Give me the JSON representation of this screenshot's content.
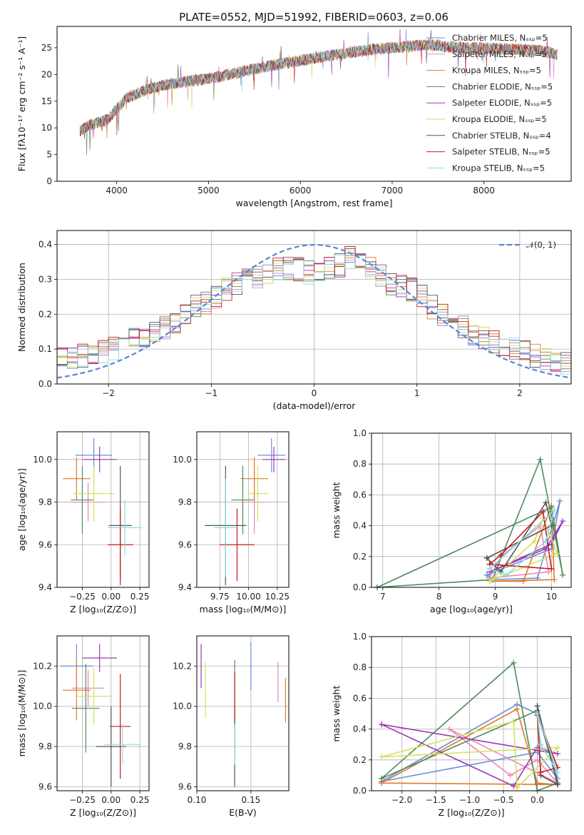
{
  "figure_title": "PLATE=0552, MJD=51992, FIBERID=0603, z=0.06",
  "chart_data": [
    {
      "id": "spectrum",
      "type": "line",
      "xlabel": "wavelength [Angstrom, rest frame]",
      "ylabel": "Flux [fλ10⁻¹⁷ erg cm⁻² s⁻¹ A⁻¹]",
      "xlim": [
        3350,
        8950
      ],
      "ylim": [
        0,
        29
      ],
      "xticks": [
        4000,
        5000,
        6000,
        7000,
        8000
      ],
      "yticks": [
        0,
        5,
        10,
        15,
        20,
        25
      ],
      "grid": false,
      "legend_position": "right",
      "spectrum_anchor_points": {
        "x": [
          3600,
          3700,
          3800,
          3900,
          4000,
          4100,
          4300,
          4500,
          4800,
          5000,
          5300,
          5600,
          5900,
          6200,
          6500,
          6800,
          7000,
          7200,
          7400,
          7600,
          7800,
          8000,
          8300,
          8600,
          8800
        ],
        "y": [
          9.5,
          10.5,
          11,
          11.5,
          13.5,
          15.5,
          17,
          18,
          18.8,
          19.2,
          20.3,
          21.4,
          22.3,
          23.2,
          24,
          24.7,
          25,
          25.3,
          25.6,
          25.2,
          25,
          24.9,
          24.7,
          24.5,
          23.8
        ]
      },
      "series": [
        {
          "name": "Chabrier MILES, N$_{SSP}$=5",
          "color": "#6a8fd8"
        },
        {
          "name": "Salpeter MILES, N$_{SSP}$=5",
          "color": "#e887b8"
        },
        {
          "name": "Kroupa MILES, N$_{SSP}$=5",
          "color": "#e07a2a"
        },
        {
          "name": "Chabrier ELODIE, N$_{SSP}$=5",
          "color": "#4f8a5c"
        },
        {
          "name": "Salpeter ELODIE, N$_{SSP}$=5",
          "color": "#9a3ab5"
        },
        {
          "name": "Kroupa ELODIE, N$_{SSP}$=5",
          "color": "#cfe35a"
        },
        {
          "name": "Chabrier STELIB, N$_{SSP}$=4",
          "color": "#555555"
        },
        {
          "name": "Salpeter STELIB, N$_{SSP}$=5",
          "color": "#c41e1e"
        },
        {
          "name": "Kroupa STELIB, N$_{SSP}$=5",
          "color": "#8fdbe3"
        }
      ]
    },
    {
      "id": "residuals",
      "type": "line",
      "xlabel": "(data-model)/error",
      "ylabel": "Normed distribution",
      "xlim": [
        -2.5,
        2.5
      ],
      "ylim": [
        0,
        0.44
      ],
      "xticks": [
        -2,
        -1,
        0,
        1,
        2
      ],
      "yticks": [
        0.0,
        0.1,
        0.2,
        0.3,
        0.4
      ],
      "grid": true,
      "legend_position": "top-right",
      "reference_curve": {
        "name": "𝒩(0, 1)",
        "color": "#5b84d6"
      },
      "hist_bins": [
        -2.5,
        -2.4,
        -2.3,
        -2.2,
        -2.1,
        -2.0,
        -1.9,
        -1.8,
        -1.7,
        -1.6,
        -1.5,
        -1.4,
        -1.3,
        -1.2,
        -1.1,
        -1.0,
        -0.9,
        -0.8,
        -0.7,
        -0.6,
        -0.5,
        -0.4,
        -0.3,
        -0.2,
        -0.1,
        0.0,
        0.1,
        0.2,
        0.3,
        0.4,
        0.5,
        0.6,
        0.7,
        0.8,
        0.9,
        1.0,
        1.1,
        1.2,
        1.3,
        1.4,
        1.5,
        1.6,
        1.7,
        1.8,
        1.9,
        2.0,
        2.1,
        2.2,
        2.3,
        2.4,
        2.5
      ],
      "base_density": [
        0.07,
        0.07,
        0.08,
        0.09,
        0.09,
        0.1,
        0.11,
        0.13,
        0.14,
        0.15,
        0.16,
        0.18,
        0.2,
        0.22,
        0.23,
        0.25,
        0.27,
        0.29,
        0.3,
        0.31,
        0.32,
        0.33,
        0.33,
        0.33,
        0.32,
        0.32,
        0.33,
        0.34,
        0.36,
        0.35,
        0.33,
        0.31,
        0.29,
        0.28,
        0.27,
        0.25,
        0.22,
        0.2,
        0.18,
        0.16,
        0.14,
        0.13,
        0.12,
        0.11,
        0.1,
        0.09,
        0.08,
        0.07,
        0.07,
        0.06
      ]
    },
    {
      "id": "age_vs_Z",
      "type": "scatter",
      "xlabel": "Z [log₁₀(Z/Z⊙)]",
      "ylabel": "age  [log₁₀(age/yr)]",
      "xlim": [
        -0.47,
        0.33
      ],
      "ylim": [
        9.4,
        10.13
      ],
      "xticks": [
        -0.25,
        0.0,
        0.25
      ],
      "yticks": [
        9.4,
        9.6,
        9.8,
        10.0
      ],
      "grid": true,
      "points": [
        {
          "x": -0.15,
          "y": 10.02,
          "ex": 0.16,
          "ey": 0.08,
          "color": "#6a8fd8"
        },
        {
          "x": -0.2,
          "y": 9.8,
          "ex": 0.16,
          "ey": 0.09,
          "color": "#e887b8"
        },
        {
          "x": -0.3,
          "y": 9.91,
          "ex": 0.12,
          "ey": 0.1,
          "color": "#e07a2a"
        },
        {
          "x": -0.25,
          "y": 9.81,
          "ex": 0.1,
          "ey": 0.16,
          "color": "#4f8a5c"
        },
        {
          "x": -0.1,
          "y": 10.0,
          "ex": 0.15,
          "ey": 0.06,
          "color": "#9a3ab5"
        },
        {
          "x": -0.15,
          "y": 9.84,
          "ex": 0.18,
          "ey": 0.13,
          "color": "#cfe35a"
        },
        {
          "x": 0.08,
          "y": 9.69,
          "ex": 0.1,
          "ey": 0.28,
          "color": "#555555"
        },
        {
          "x": 0.08,
          "y": 9.6,
          "ex": 0.11,
          "ey": 0.17,
          "color": "#c41e1e"
        },
        {
          "x": 0.12,
          "y": 9.68,
          "ex": 0.15,
          "ey": 0.13,
          "color": "#8fdbe3"
        }
      ]
    },
    {
      "id": "age_vs_mass",
      "type": "scatter",
      "xlabel": "mass [log₁₀(M/M⊙)]",
      "ylabel": "",
      "xlim": [
        9.55,
        10.35
      ],
      "ylim": [
        9.4,
        10.13
      ],
      "xticks": [
        9.75,
        10.0,
        10.25
      ],
      "yticks": [
        9.4,
        9.6,
        9.8,
        10.0
      ],
      "grid": true,
      "points": [
        {
          "x": 10.2,
          "y": 10.02,
          "ex": 0.12,
          "ey": 0.08,
          "color": "#6a8fd8"
        },
        {
          "x": 10.05,
          "y": 9.8,
          "ex": 0.1,
          "ey": 0.15,
          "color": "#e887b8"
        },
        {
          "x": 10.05,
          "y": 9.91,
          "ex": 0.12,
          "ey": 0.1,
          "color": "#e07a2a"
        },
        {
          "x": 9.95,
          "y": 9.81,
          "ex": 0.1,
          "ey": 0.16,
          "color": "#4f8a5c"
        },
        {
          "x": 10.22,
          "y": 10.0,
          "ex": 0.1,
          "ey": 0.06,
          "color": "#9a3ab5"
        },
        {
          "x": 10.08,
          "y": 9.84,
          "ex": 0.09,
          "ey": 0.13,
          "color": "#cfe35a"
        },
        {
          "x": 9.8,
          "y": 9.69,
          "ex": 0.18,
          "ey": 0.28,
          "color": "#555555"
        },
        {
          "x": 9.9,
          "y": 9.6,
          "ex": 0.15,
          "ey": 0.17,
          "color": "#c41e1e"
        },
        {
          "x": 9.8,
          "y": 9.68,
          "ex": 0.1,
          "ey": 0.23,
          "color": "#8fdbe3"
        }
      ]
    },
    {
      "id": "weight_vs_age",
      "type": "line",
      "xlabel": "age  [log₁₀(age/yr)]",
      "ylabel": "mass weight",
      "xlim": [
        6.8,
        10.35
      ],
      "ylim": [
        0,
        1.0
      ],
      "xticks": [
        7,
        8,
        9,
        10
      ],
      "yticks": [
        0.0,
        0.2,
        0.4,
        0.6,
        0.8,
        1.0
      ],
      "grid": true,
      "series": [
        {
          "color": "#6a8fd8",
          "x": [
            8.85,
            8.95,
            9.75,
            10.15,
            10.0,
            8.85
          ],
          "y": [
            0.08,
            0.05,
            0.06,
            0.56,
            0.25,
            0.08
          ]
        },
        {
          "color": "#e887b8",
          "x": [
            8.9,
            9.1,
            9.8,
            9.95,
            8.9
          ],
          "y": [
            0.06,
            0.2,
            0.4,
            0.1,
            0.06
          ]
        },
        {
          "color": "#e07a2a",
          "x": [
            8.9,
            9.5,
            10.0,
            10.05,
            8.9
          ],
          "y": [
            0.04,
            0.04,
            0.53,
            0.05,
            0.04
          ]
        },
        {
          "color": "#4f8a5c",
          "x": [
            6.9,
            8.95,
            9.8,
            10.2,
            10.0,
            6.9
          ],
          "y": [
            0.0,
            0.05,
            0.83,
            0.08,
            0.52,
            0.0
          ]
        },
        {
          "color": "#9a3ab5",
          "x": [
            8.9,
            9.9,
            10.2,
            10.0,
            8.9
          ],
          "y": [
            0.1,
            0.25,
            0.43,
            0.28,
            0.1
          ]
        },
        {
          "color": "#cfe35a",
          "x": [
            8.9,
            9.7,
            9.85,
            10.1,
            8.9
          ],
          "y": [
            0.04,
            0.3,
            0.45,
            0.22,
            0.04
          ]
        },
        {
          "color": "#555555",
          "x": [
            8.85,
            9.1,
            9.9,
            10.0,
            8.85
          ],
          "y": [
            0.19,
            0.1,
            0.55,
            0.4,
            0.19
          ]
        },
        {
          "color": "#c41e1e",
          "x": [
            8.9,
            9.1,
            9.85,
            10.0,
            8.9
          ],
          "y": [
            0.15,
            0.21,
            0.49,
            0.12,
            0.15
          ]
        },
        {
          "color": "#8fdbe3",
          "x": [
            8.9,
            9.2,
            9.9,
            10.05,
            8.9
          ],
          "y": [
            0.12,
            0.08,
            0.3,
            0.5,
            0.12
          ]
        }
      ]
    },
    {
      "id": "mass_vs_Z",
      "type": "scatter",
      "xlabel": "Z [log₁₀(Z/Z⊙)]",
      "ylabel": "mass [log₁₀(M/M⊙)]",
      "xlim": [
        -0.47,
        0.33
      ],
      "ylim": [
        9.58,
        10.35
      ],
      "xticks": [
        -0.25,
        0.0,
        0.25
      ],
      "yticks": [
        9.6,
        9.8,
        10.0,
        10.2
      ],
      "grid": true,
      "points": [
        {
          "x": -0.3,
          "y": 10.2,
          "ex": 0.14,
          "ey": 0.11,
          "color": "#6a8fd8"
        },
        {
          "x": -0.2,
          "y": 10.09,
          "ex": 0.14,
          "ey": 0.09,
          "color": "#e887b8"
        },
        {
          "x": -0.3,
          "y": 10.08,
          "ex": 0.12,
          "ey": 0.15,
          "color": "#e07a2a"
        },
        {
          "x": -0.22,
          "y": 9.99,
          "ex": 0.12,
          "ey": 0.22,
          "color": "#4f8a5c"
        },
        {
          "x": -0.1,
          "y": 10.24,
          "ex": 0.15,
          "ey": 0.07,
          "color": "#9a3ab5"
        },
        {
          "x": -0.15,
          "y": 10.05,
          "ex": 0.16,
          "ey": 0.14,
          "color": "#cfe35a"
        },
        {
          "x": 0.0,
          "y": 9.8,
          "ex": 0.13,
          "ey": 0.2,
          "color": "#555555"
        },
        {
          "x": 0.08,
          "y": 9.9,
          "ex": 0.09,
          "ey": 0.26,
          "color": "#c41e1e"
        },
        {
          "x": 0.1,
          "y": 9.81,
          "ex": 0.16,
          "ey": 0.1,
          "color": "#8fdbe3"
        }
      ]
    },
    {
      "id": "mass_vs_ebv",
      "type": "scatter",
      "xlabel": "E(B-V)",
      "ylabel": "",
      "xlim": [
        0.1,
        0.185
      ],
      "ylim": [
        9.58,
        10.35
      ],
      "xticks": [
        0.1,
        0.15
      ],
      "yticks": [
        9.6,
        9.8,
        10.0,
        10.2
      ],
      "grid": true,
      "points": [
        {
          "x": 0.15,
          "y": 10.2,
          "ex": 0,
          "ey": 0.12,
          "color": "#6a8fd8"
        },
        {
          "x": 0.175,
          "y": 10.12,
          "ex": 0,
          "ey": 0.1,
          "color": "#e887b8"
        },
        {
          "x": 0.182,
          "y": 10.03,
          "ex": 0,
          "ey": 0.11,
          "color": "#e07a2a"
        },
        {
          "x": 0.135,
          "y": 10.0,
          "ex": 0,
          "ey": 0.23,
          "color": "#4f8a5c"
        },
        {
          "x": 0.104,
          "y": 10.2,
          "ex": 0,
          "ey": 0.11,
          "color": "#9a3ab5"
        },
        {
          "x": 0.108,
          "y": 10.08,
          "ex": 0,
          "ey": 0.14,
          "color": "#cfe35a"
        },
        {
          "x": 0.135,
          "y": 9.8,
          "ex": 0,
          "ey": 0.2,
          "color": "#555555"
        },
        {
          "x": 0.135,
          "y": 10.05,
          "ex": 0,
          "ey": 0.12,
          "color": "#c41e1e"
        },
        {
          "x": 0.135,
          "y": 9.81,
          "ex": 0,
          "ey": 0.1,
          "color": "#8fdbe3"
        }
      ]
    },
    {
      "id": "weight_vs_Z",
      "type": "line",
      "xlabel": "Z [log₁₀(Z/Z⊙)]",
      "ylabel": "mass weight",
      "xlim": [
        -2.45,
        0.5
      ],
      "ylim": [
        0,
        1.0
      ],
      "xticks": [
        -2.0,
        -1.5,
        -1.0,
        -0.5,
        0.0
      ],
      "yticks": [
        0.0,
        0.2,
        0.4,
        0.6,
        0.8,
        1.0
      ],
      "grid": true,
      "series": [
        {
          "color": "#6a8fd8",
          "x": [
            -2.3,
            -0.3,
            0.0,
            0.3,
            0.0,
            -2.3
          ],
          "y": [
            0.06,
            0.56,
            0.5,
            0.08,
            0.25,
            0.06
          ]
        },
        {
          "color": "#e887b8",
          "x": [
            -1.3,
            -0.4,
            0.0,
            0.3,
            -1.3
          ],
          "y": [
            0.4,
            0.1,
            0.2,
            0.05,
            0.4
          ]
        },
        {
          "color": "#e07a2a",
          "x": [
            -2.3,
            -0.3,
            0.0,
            0.3,
            -2.3
          ],
          "y": [
            0.05,
            0.53,
            0.05,
            0.04,
            0.05
          ]
        },
        {
          "color": "#4f8a5c",
          "x": [
            -2.3,
            -0.35,
            0.0,
            0.3,
            0.0,
            -2.3
          ],
          "y": [
            0.08,
            0.83,
            0.0,
            0.05,
            0.52,
            0.08
          ]
        },
        {
          "color": "#9a3ab5",
          "x": [
            -2.3,
            -0.35,
            0.0,
            0.3,
            -2.3
          ],
          "y": [
            0.43,
            0.03,
            0.28,
            0.24,
            0.43
          ]
        },
        {
          "color": "#cfe35a",
          "x": [
            -2.3,
            -0.35,
            -0.3,
            0.3,
            -2.3
          ],
          "y": [
            0.22,
            0.45,
            0.02,
            0.28,
            0.22
          ]
        },
        {
          "color": "#555555",
          "x": [
            0.0,
            0.05,
            0.3,
            0.0
          ],
          "y": [
            0.55,
            0.1,
            0.04,
            0.55
          ]
        },
        {
          "color": "#c41e1e",
          "x": [
            0.0,
            0.05,
            0.3,
            0.0
          ],
          "y": [
            0.49,
            0.12,
            0.15,
            0.49
          ]
        },
        {
          "color": "#8fdbe3",
          "x": [
            0.0,
            0.05,
            0.3,
            0.0
          ],
          "y": [
            0.5,
            0.3,
            0.12,
            0.5
          ]
        }
      ]
    }
  ]
}
